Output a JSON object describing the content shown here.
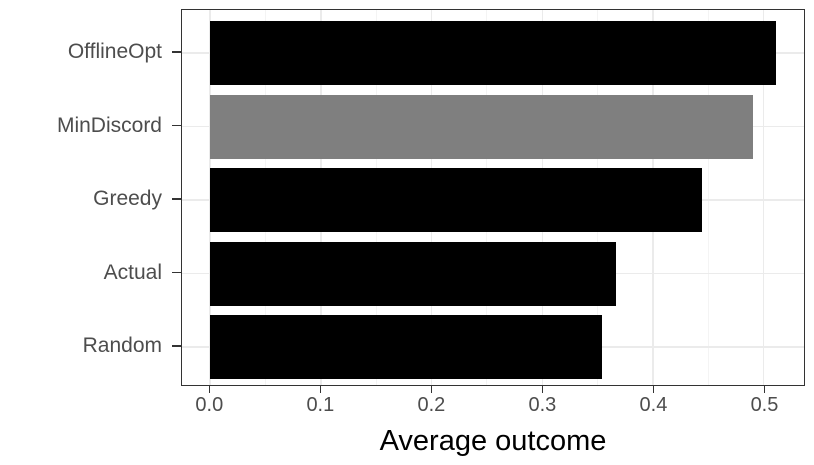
{
  "chart_data": {
    "type": "bar",
    "orientation": "horizontal",
    "title": "",
    "xlabel": "Average outcome",
    "ylabel": "",
    "categories": [
      "OfflineOpt",
      "MinDiscord",
      "Greedy",
      "Actual",
      "Random"
    ],
    "values": [
      0.511,
      0.49,
      0.444,
      0.367,
      0.354
    ],
    "bar_colors": [
      "#000000",
      "#7f7f7f",
      "#000000",
      "#000000",
      "#000000"
    ],
    "highlighted_category": "MinDiscord",
    "xlim": [
      -0.0255,
      0.5365
    ],
    "x_major_ticks": [
      0.0,
      0.1,
      0.2,
      0.3,
      0.4,
      0.5
    ],
    "x_tick_labels": [
      "0.0",
      "0.1",
      "0.2",
      "0.3",
      "0.4",
      "0.5"
    ],
    "x_minor_ticks": [
      0.05,
      0.15,
      0.25,
      0.35,
      0.45
    ],
    "grid": "vertical major+minor, horizontal major at category centers",
    "legend": "none",
    "style": {
      "background_color": "#ffffff",
      "panel_border_color": "#333333",
      "grid_major_color": "#ebebeb",
      "grid_minor_color": "#f4f4f4",
      "tick_mark_color": "#333333",
      "axis_text_color": "#4d4d4d",
      "axis_title_color": "#000000"
    }
  }
}
